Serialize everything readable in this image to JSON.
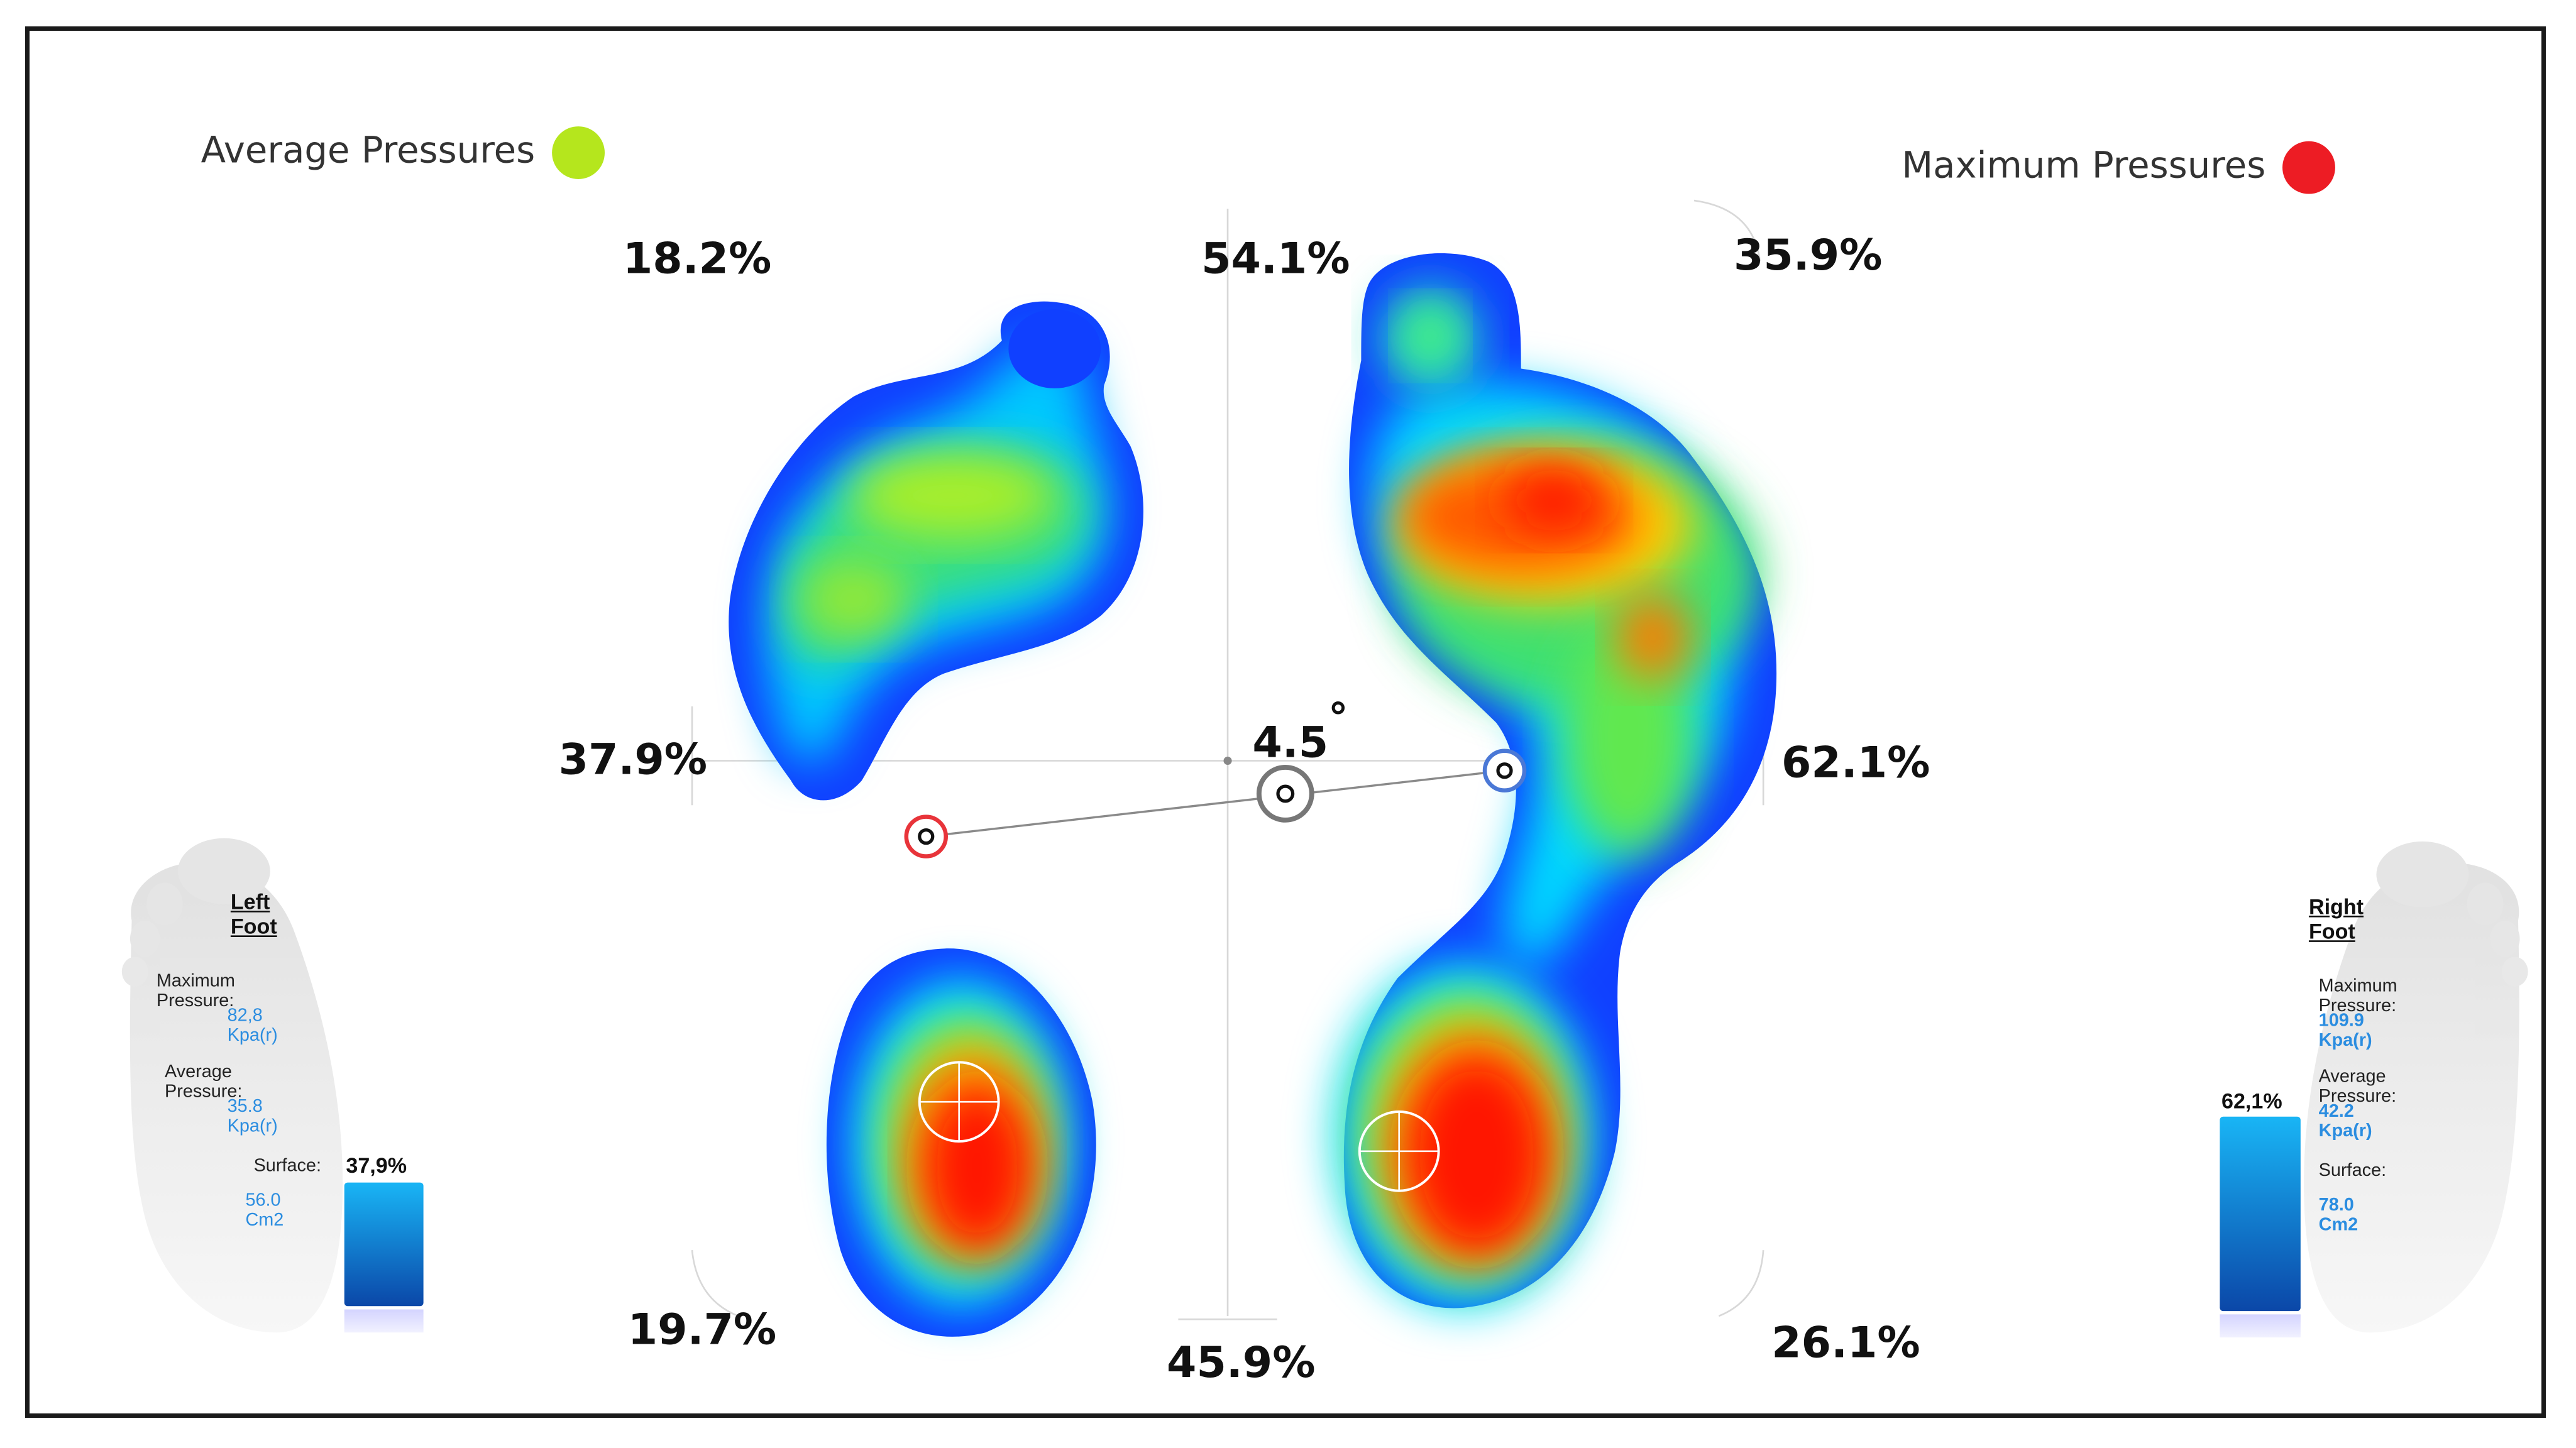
{
  "legend": {
    "average_label": "Average Pressures",
    "average_color": "#b5e61d",
    "maximum_label": "Maximum Pressures",
    "maximum_color": "#ed1c24"
  },
  "distribution": {
    "top_left": "18.2%",
    "top_center": "54.1%",
    "top_right": "35.9%",
    "middle_left": "37.9%",
    "middle_right": "62.1%",
    "bottom_left": "19.7%",
    "bottom_center": "45.9%",
    "bottom_right": "26.1%"
  },
  "angle": {
    "value": "4.5",
    "symbol": "°"
  },
  "left_foot": {
    "title": "Left Foot",
    "max_pressure_label": "Maximum Pressure:",
    "max_pressure_value": "82,8 Kpa(r)",
    "avg_pressure_label": "Average Pressure:",
    "avg_pressure_value": "35.8 Kpa(r)",
    "surface_label": "Surface:",
    "surface_value": "56.0 Cm2",
    "surface_percent": "37,9%"
  },
  "right_foot": {
    "title": "Right Foot",
    "max_pressure_label": "Maximum Pressure:",
    "max_pressure_value": "109.9 Kpa(r)",
    "avg_pressure_label": "Average Pressure:",
    "avg_pressure_value": "42.2 Kpa(r)",
    "surface_label": "Surface:",
    "surface_value": "78.0 Cm2",
    "surface_percent": "62,1%"
  },
  "colors": {
    "cop_left": "#e8343a",
    "cop_right": "#4a78d6",
    "cop_center": "#777777",
    "bar_top": "#19b5f5",
    "bar_bottom": "#0b47a8"
  }
}
